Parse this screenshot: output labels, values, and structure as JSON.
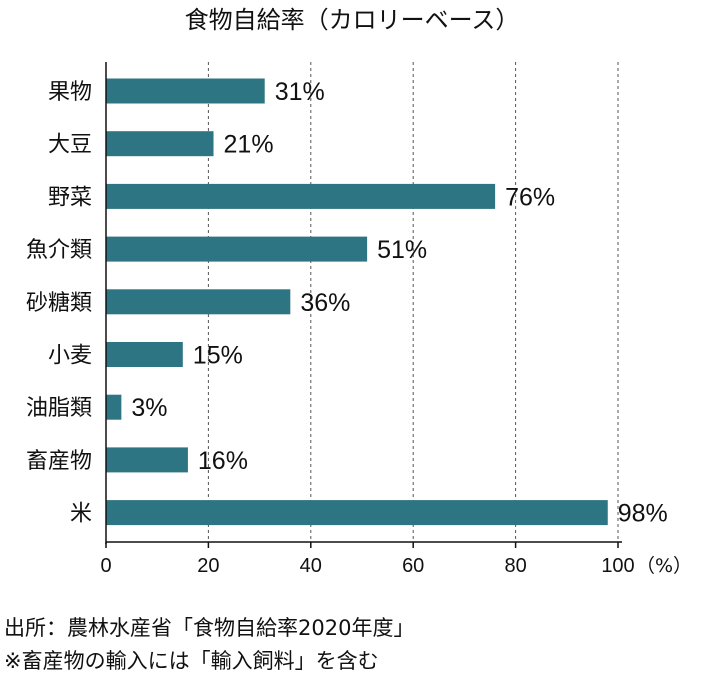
{
  "chart_data": {
    "type": "bar",
    "orientation": "horizontal",
    "title": "食物自給率（カロリーベース）",
    "categories": [
      "果物",
      "大豆",
      "野菜",
      "魚介類",
      "砂糖類",
      "小麦",
      "油脂類",
      "畜産物",
      "米"
    ],
    "values": [
      31,
      21,
      76,
      51,
      36,
      15,
      3,
      16,
      98
    ],
    "value_labels": [
      "31%",
      "21%",
      "76%",
      "51%",
      "36%",
      "15%",
      "3%",
      "16%",
      "98%"
    ],
    "xticks": [
      "0",
      "20",
      "40",
      "60",
      "80",
      "100"
    ],
    "xlim": [
      0,
      100
    ],
    "xunit": "（%）",
    "grid": "vertical dashed",
    "bar_color": "#2e7583"
  },
  "footer": {
    "source": "出所：農林水産省「食物自給率2020年度」",
    "note": "※畜産物の輸入には「輸入飼料」を含む"
  }
}
